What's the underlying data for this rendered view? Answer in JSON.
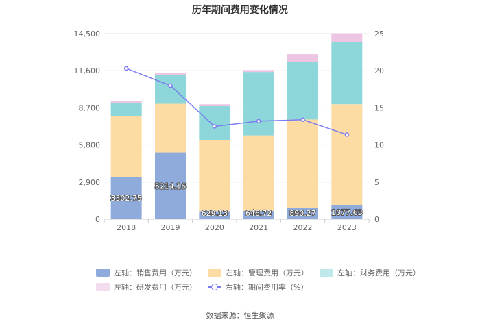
{
  "chart_data": {
    "type": "bar",
    "stacked": true,
    "title": "历年期间费用变化情况",
    "categories": [
      "2018",
      "2019",
      "2020",
      "2021",
      "2022",
      "2023"
    ],
    "y_left": {
      "ticks": [
        "0",
        "2,900",
        "5,800",
        "8,700",
        "11,600",
        "14,500"
      ],
      "range": [
        0,
        14500
      ]
    },
    "y_right": {
      "ticks": [
        "0",
        "5",
        "10",
        "15",
        "20",
        "25"
      ],
      "range": [
        0,
        25
      ]
    },
    "series": [
      {
        "name": "左轴：销售费用（万元）",
        "color": "#8eabdc",
        "axis": "left",
        "values": [
          3302.75,
          5214.16,
          629.13,
          646.72,
          890.27,
          1077.63
        ],
        "labels": [
          "3302.75",
          "5214.16",
          "629.13",
          "646.72",
          "890.27",
          "1077.63"
        ]
      },
      {
        "name": "左轴：管理费用（万元）",
        "color": "#fddca4",
        "axis": "left",
        "values": [
          4750,
          3800,
          5550,
          5900,
          6900,
          7900
        ]
      },
      {
        "name": "左轴：财务费用（万元）",
        "color": "#8dd6d9",
        "axis": "left",
        "values": [
          1000,
          2250,
          2650,
          4950,
          4500,
          4850
        ]
      },
      {
        "name": "左轴：研发费用（万元）",
        "color": "#ecc5e3",
        "axis": "left",
        "values": [
          150,
          150,
          150,
          150,
          600,
          700
        ]
      },
      {
        "name": "右轴：期间费用率（%）",
        "color": "#7b7cf0",
        "axis": "right",
        "type": "line",
        "values": [
          20.3,
          18.0,
          12.5,
          13.2,
          13.4,
          11.4
        ]
      }
    ],
    "legend": [
      "左轴：销售费用（万元）",
      "左轴：管理费用（万元）",
      "左轴：财务费用（万元）",
      "左轴：研发费用（万元）",
      "右轴：期间费用率（%）"
    ],
    "source": "数据来源：恒生聚源"
  }
}
